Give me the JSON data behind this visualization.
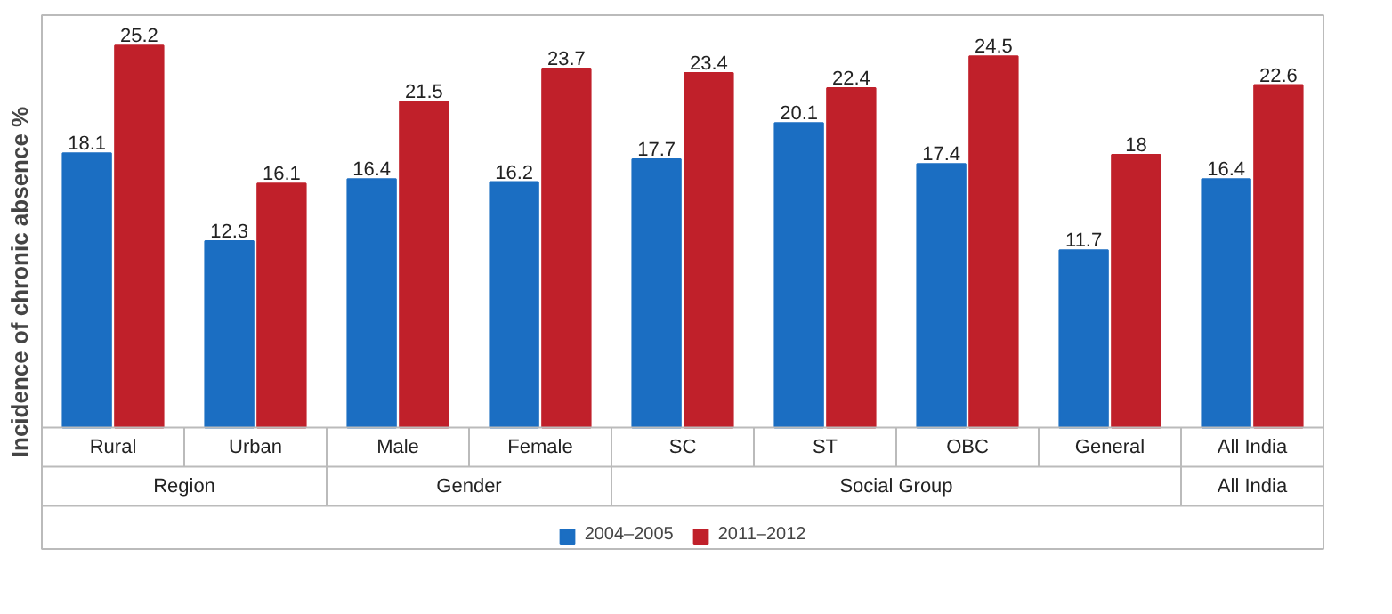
{
  "chart_data": {
    "type": "bar",
    "ylabel": "Incidence of chronic absence %",
    "categories": [
      "Rural",
      "Urban",
      "Male",
      "Female",
      "SC",
      "ST",
      "OBC",
      "General",
      "All India"
    ],
    "series": [
      {
        "name": "2004–2005",
        "color": "#1b6ec2",
        "values": [
          18.1,
          12.3,
          16.4,
          16.2,
          17.7,
          20.1,
          17.4,
          11.7,
          16.4
        ]
      },
      {
        "name": "2011–2012",
        "color": "#c0202a",
        "values": [
          25.2,
          16.1,
          21.5,
          23.7,
          23.4,
          22.4,
          24.5,
          18,
          22.6
        ]
      }
    ],
    "annotations": [
      "Region",
      "Gender",
      "Social Group",
      "All India"
    ],
    "data_labels": true,
    "legend": "bottom"
  }
}
